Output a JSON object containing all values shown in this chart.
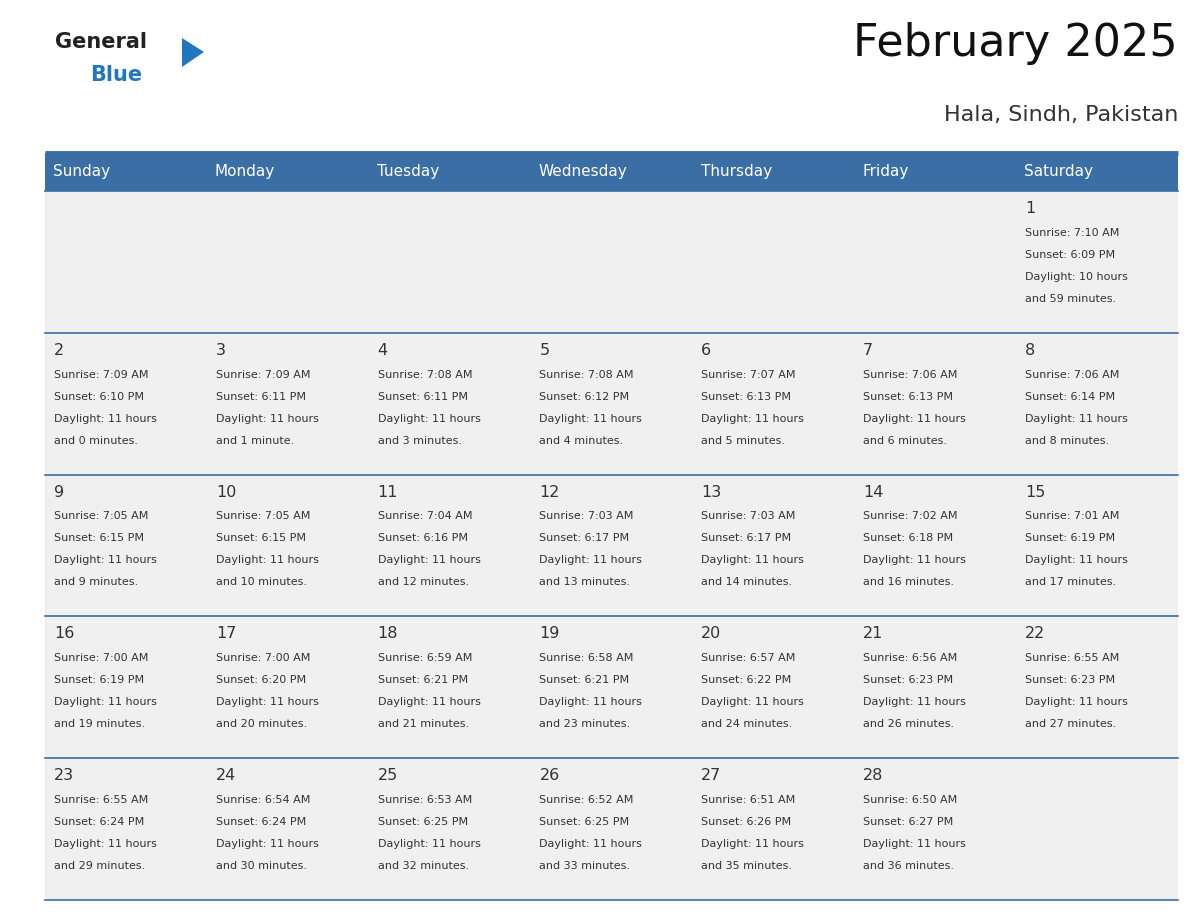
{
  "title": "February 2025",
  "subtitle": "Hala, Sindh, Pakistan",
  "header_bg_color": "#3a6ea5",
  "header_text_color": "#ffffff",
  "cell_bg": "#f0f0f0",
  "day_headers": [
    "Sunday",
    "Monday",
    "Tuesday",
    "Wednesday",
    "Thursday",
    "Friday",
    "Saturday"
  ],
  "title_color": "#111111",
  "subtitle_color": "#333333",
  "day_num_color": "#333333",
  "info_color": "#333333",
  "line_color": "#3a6ea5",
  "logo_text_color": "#222222",
  "logo_blue_color": "#2176bd",
  "calendar_data": [
    [
      {
        "day": 0,
        "sunrise": "",
        "sunset": "",
        "daylight": ""
      },
      {
        "day": 0,
        "sunrise": "",
        "sunset": "",
        "daylight": ""
      },
      {
        "day": 0,
        "sunrise": "",
        "sunset": "",
        "daylight": ""
      },
      {
        "day": 0,
        "sunrise": "",
        "sunset": "",
        "daylight": ""
      },
      {
        "day": 0,
        "sunrise": "",
        "sunset": "",
        "daylight": ""
      },
      {
        "day": 0,
        "sunrise": "",
        "sunset": "",
        "daylight": ""
      },
      {
        "day": 1,
        "sunrise": "7:10 AM",
        "sunset": "6:09 PM",
        "daylight": "10 hours\nand 59 minutes."
      }
    ],
    [
      {
        "day": 2,
        "sunrise": "7:09 AM",
        "sunset": "6:10 PM",
        "daylight": "11 hours\nand 0 minutes."
      },
      {
        "day": 3,
        "sunrise": "7:09 AM",
        "sunset": "6:11 PM",
        "daylight": "11 hours\nand 1 minute."
      },
      {
        "day": 4,
        "sunrise": "7:08 AM",
        "sunset": "6:11 PM",
        "daylight": "11 hours\nand 3 minutes."
      },
      {
        "day": 5,
        "sunrise": "7:08 AM",
        "sunset": "6:12 PM",
        "daylight": "11 hours\nand 4 minutes."
      },
      {
        "day": 6,
        "sunrise": "7:07 AM",
        "sunset": "6:13 PM",
        "daylight": "11 hours\nand 5 minutes."
      },
      {
        "day": 7,
        "sunrise": "7:06 AM",
        "sunset": "6:13 PM",
        "daylight": "11 hours\nand 6 minutes."
      },
      {
        "day": 8,
        "sunrise": "7:06 AM",
        "sunset": "6:14 PM",
        "daylight": "11 hours\nand 8 minutes."
      }
    ],
    [
      {
        "day": 9,
        "sunrise": "7:05 AM",
        "sunset": "6:15 PM",
        "daylight": "11 hours\nand 9 minutes."
      },
      {
        "day": 10,
        "sunrise": "7:05 AM",
        "sunset": "6:15 PM",
        "daylight": "11 hours\nand 10 minutes."
      },
      {
        "day": 11,
        "sunrise": "7:04 AM",
        "sunset": "6:16 PM",
        "daylight": "11 hours\nand 12 minutes."
      },
      {
        "day": 12,
        "sunrise": "7:03 AM",
        "sunset": "6:17 PM",
        "daylight": "11 hours\nand 13 minutes."
      },
      {
        "day": 13,
        "sunrise": "7:03 AM",
        "sunset": "6:17 PM",
        "daylight": "11 hours\nand 14 minutes."
      },
      {
        "day": 14,
        "sunrise": "7:02 AM",
        "sunset": "6:18 PM",
        "daylight": "11 hours\nand 16 minutes."
      },
      {
        "day": 15,
        "sunrise": "7:01 AM",
        "sunset": "6:19 PM",
        "daylight": "11 hours\nand 17 minutes."
      }
    ],
    [
      {
        "day": 16,
        "sunrise": "7:00 AM",
        "sunset": "6:19 PM",
        "daylight": "11 hours\nand 19 minutes."
      },
      {
        "day": 17,
        "sunrise": "7:00 AM",
        "sunset": "6:20 PM",
        "daylight": "11 hours\nand 20 minutes."
      },
      {
        "day": 18,
        "sunrise": "6:59 AM",
        "sunset": "6:21 PM",
        "daylight": "11 hours\nand 21 minutes."
      },
      {
        "day": 19,
        "sunrise": "6:58 AM",
        "sunset": "6:21 PM",
        "daylight": "11 hours\nand 23 minutes."
      },
      {
        "day": 20,
        "sunrise": "6:57 AM",
        "sunset": "6:22 PM",
        "daylight": "11 hours\nand 24 minutes."
      },
      {
        "day": 21,
        "sunrise": "6:56 AM",
        "sunset": "6:23 PM",
        "daylight": "11 hours\nand 26 minutes."
      },
      {
        "day": 22,
        "sunrise": "6:55 AM",
        "sunset": "6:23 PM",
        "daylight": "11 hours\nand 27 minutes."
      }
    ],
    [
      {
        "day": 23,
        "sunrise": "6:55 AM",
        "sunset": "6:24 PM",
        "daylight": "11 hours\nand 29 minutes."
      },
      {
        "day": 24,
        "sunrise": "6:54 AM",
        "sunset": "6:24 PM",
        "daylight": "11 hours\nand 30 minutes."
      },
      {
        "day": 25,
        "sunrise": "6:53 AM",
        "sunset": "6:25 PM",
        "daylight": "11 hours\nand 32 minutes."
      },
      {
        "day": 26,
        "sunrise": "6:52 AM",
        "sunset": "6:25 PM",
        "daylight": "11 hours\nand 33 minutes."
      },
      {
        "day": 27,
        "sunrise": "6:51 AM",
        "sunset": "6:26 PM",
        "daylight": "11 hours\nand 35 minutes."
      },
      {
        "day": 28,
        "sunrise": "6:50 AM",
        "sunset": "6:27 PM",
        "daylight": "11 hours\nand 36 minutes."
      },
      {
        "day": 0,
        "sunrise": "",
        "sunset": "",
        "daylight": ""
      }
    ]
  ]
}
